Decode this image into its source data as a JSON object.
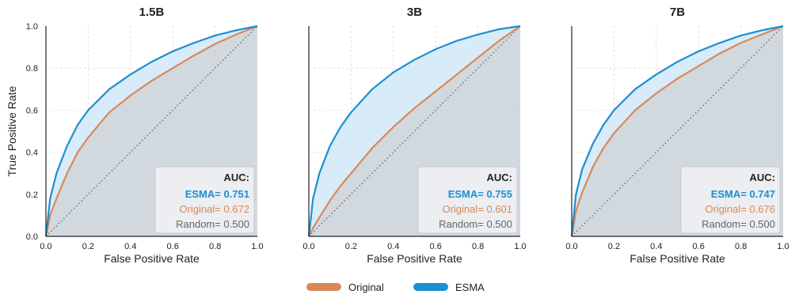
{
  "colors": {
    "original": "#d9885a",
    "esma": "#1b8fd2",
    "fill_between": "#d4e9f7",
    "fill_under": "#c9d1d8",
    "random": "#777777",
    "random_text": "#666666"
  },
  "legend": {
    "original": "Original",
    "esma": "ESMA"
  },
  "chart_data": [
    {
      "type": "line",
      "title": "1.5B",
      "xlabel": "False Positive Rate",
      "ylabel": "True Positive Rate",
      "xlim": [
        0,
        1
      ],
      "ylim": [
        0,
        1
      ],
      "xticks": [
        "0.0",
        "0.2",
        "0.4",
        "0.6",
        "0.8",
        "1.0"
      ],
      "yticks": [
        "0.0",
        "0.2",
        "0.4",
        "0.6",
        "0.8",
        "1.0"
      ],
      "grid": true,
      "legend_position": "bottom-right",
      "auc_box": {
        "heading": "AUC:",
        "esma": "ESMA= 0.751",
        "original": "Original= 0.672",
        "random": "Random= 0.500"
      },
      "x": [
        0,
        0.02,
        0.05,
        0.1,
        0.15,
        0.2,
        0.3,
        0.4,
        0.5,
        0.6,
        0.7,
        0.8,
        0.9,
        1.0
      ],
      "series": [
        {
          "name": "ESMA",
          "values": [
            0,
            0.18,
            0.3,
            0.43,
            0.53,
            0.6,
            0.7,
            0.77,
            0.83,
            0.88,
            0.92,
            0.955,
            0.98,
            1.0
          ]
        },
        {
          "name": "Original",
          "values": [
            0,
            0.1,
            0.18,
            0.3,
            0.4,
            0.47,
            0.59,
            0.67,
            0.74,
            0.8,
            0.86,
            0.915,
            0.96,
            1.0
          ]
        },
        {
          "name": "Random",
          "values": [
            0,
            0.02,
            0.05,
            0.1,
            0.15,
            0.2,
            0.3,
            0.4,
            0.5,
            0.6,
            0.7,
            0.8,
            0.9,
            1.0
          ]
        }
      ]
    },
    {
      "type": "line",
      "title": "3B",
      "xlabel": "False Positive Rate",
      "ylabel": "",
      "xlim": [
        0,
        1
      ],
      "ylim": [
        0,
        1
      ],
      "xticks": [
        "0.0",
        "0.2",
        "0.4",
        "0.6",
        "0.8",
        "1.0"
      ],
      "yticks": [],
      "grid": true,
      "legend_position": "bottom-right",
      "auc_box": {
        "heading": "AUC:",
        "esma": "ESMA= 0.755",
        "original": "Original= 0.601",
        "random": "Random= 0.500"
      },
      "x": [
        0,
        0.02,
        0.05,
        0.1,
        0.15,
        0.2,
        0.3,
        0.4,
        0.5,
        0.6,
        0.7,
        0.8,
        0.9,
        1.0
      ],
      "series": [
        {
          "name": "ESMA",
          "values": [
            0,
            0.18,
            0.3,
            0.43,
            0.52,
            0.59,
            0.7,
            0.78,
            0.84,
            0.89,
            0.93,
            0.96,
            0.985,
            1.0
          ]
        },
        {
          "name": "Original",
          "values": [
            0,
            0.04,
            0.09,
            0.17,
            0.24,
            0.3,
            0.42,
            0.52,
            0.61,
            0.69,
            0.77,
            0.85,
            0.93,
            1.0
          ]
        },
        {
          "name": "Random",
          "values": [
            0,
            0.02,
            0.05,
            0.1,
            0.15,
            0.2,
            0.3,
            0.4,
            0.5,
            0.6,
            0.7,
            0.8,
            0.9,
            1.0
          ]
        }
      ]
    },
    {
      "type": "line",
      "title": "7B",
      "xlabel": "False Positive Rate",
      "ylabel": "",
      "xlim": [
        0,
        1
      ],
      "ylim": [
        0,
        1
      ],
      "xticks": [
        "0.0",
        "0.2",
        "0.4",
        "0.6",
        "0.8",
        "1.0"
      ],
      "yticks": [],
      "grid": true,
      "legend_position": "bottom-right",
      "auc_box": {
        "heading": "AUC:",
        "esma": "ESMA= 0.747",
        "original": "Original= 0.676",
        "random": "Random= 0.500"
      },
      "x": [
        0,
        0.02,
        0.05,
        0.1,
        0.15,
        0.2,
        0.3,
        0.4,
        0.5,
        0.6,
        0.7,
        0.8,
        0.9,
        1.0
      ],
      "series": [
        {
          "name": "ESMA",
          "values": [
            0,
            0.2,
            0.32,
            0.44,
            0.53,
            0.6,
            0.7,
            0.77,
            0.83,
            0.88,
            0.92,
            0.955,
            0.98,
            1.0
          ]
        },
        {
          "name": "Original",
          "values": [
            0,
            0.12,
            0.21,
            0.33,
            0.42,
            0.49,
            0.6,
            0.68,
            0.75,
            0.81,
            0.87,
            0.92,
            0.96,
            1.0
          ]
        },
        {
          "name": "Random",
          "values": [
            0,
            0.02,
            0.05,
            0.1,
            0.15,
            0.2,
            0.3,
            0.4,
            0.5,
            0.6,
            0.7,
            0.8,
            0.9,
            1.0
          ]
        }
      ]
    }
  ]
}
